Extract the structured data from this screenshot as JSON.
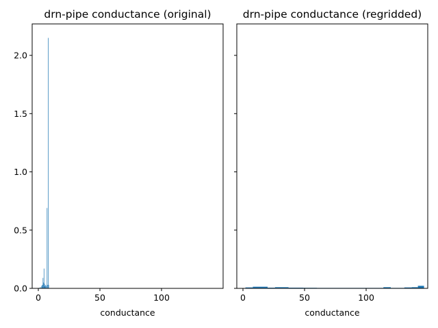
{
  "chart_data": [
    {
      "type": "bar",
      "title": "drn-pipe conductance (original)",
      "xlabel": "conductance",
      "ylabel": "",
      "xlim": [
        -5,
        150
      ],
      "ylim": [
        0,
        2.27
      ],
      "xticks": [
        0,
        50,
        100
      ],
      "xtick_labels": [
        "0",
        "50",
        "100"
      ],
      "yticks": [
        0.0,
        0.5,
        1.0,
        1.5,
        2.0
      ],
      "ytick_labels": [
        "0.0",
        "0.5",
        "1.0",
        "1.5",
        "2.0"
      ],
      "show_ytick_labels": true,
      "color": "#1f77b4",
      "bars": [
        {
          "x0": 0.5,
          "x1": 1.0,
          "value": 0.005
        },
        {
          "x0": 1.5,
          "x1": 2.0,
          "value": 0.01
        },
        {
          "x0": 2.5,
          "x1": 3.0,
          "value": 0.02
        },
        {
          "x0": 3.0,
          "x1": 3.5,
          "value": 0.03
        },
        {
          "x0": 3.6,
          "x1": 4.0,
          "value": 0.09
        },
        {
          "x0": 4.0,
          "x1": 4.4,
          "value": 0.05
        },
        {
          "x0": 4.4,
          "x1": 4.8,
          "value": 0.17
        },
        {
          "x0": 4.8,
          "x1": 5.2,
          "value": 0.04
        },
        {
          "x0": 5.2,
          "x1": 5.7,
          "value": 0.02
        },
        {
          "x0": 5.8,
          "x1": 6.2,
          "value": 0.03
        },
        {
          "x0": 6.3,
          "x1": 6.7,
          "value": 0.02
        },
        {
          "x0": 6.9,
          "x1": 7.3,
          "value": 0.69
        },
        {
          "x0": 7.3,
          "x1": 7.7,
          "value": 0.03
        },
        {
          "x0": 7.8,
          "x1": 8.2,
          "value": 2.15
        },
        {
          "x0": 8.2,
          "x1": 8.6,
          "value": 0.03
        }
      ]
    },
    {
      "type": "bar",
      "title": "drn-pipe conductance (regridded)",
      "xlabel": "conductance",
      "ylabel": "",
      "xlim": [
        -5,
        150
      ],
      "ylim": [
        0,
        2.27
      ],
      "xticks": [
        0,
        50,
        100
      ],
      "xtick_labels": [
        "0",
        "50",
        "100"
      ],
      "yticks": [
        0.0,
        0.5,
        1.0,
        1.5,
        2.0
      ],
      "ytick_labels": [
        "0.0",
        "0.5",
        "1.0",
        "1.5",
        "2.0"
      ],
      "show_ytick_labels": false,
      "color": "#1f77b4",
      "bars": [
        {
          "x0": 2,
          "x1": 8,
          "value": 0.008
        },
        {
          "x0": 8,
          "x1": 20,
          "value": 0.014
        },
        {
          "x0": 20,
          "x1": 26,
          "value": 0.006
        },
        {
          "x0": 26,
          "x1": 37,
          "value": 0.01
        },
        {
          "x0": 37,
          "x1": 49,
          "value": 0.006
        },
        {
          "x0": 49,
          "x1": 60,
          "value": 0.005
        },
        {
          "x0": 60,
          "x1": 72,
          "value": 0.004
        },
        {
          "x0": 72,
          "x1": 83,
          "value": 0.004
        },
        {
          "x0": 83,
          "x1": 95,
          "value": 0.004
        },
        {
          "x0": 95,
          "x1": 106,
          "value": 0.004
        },
        {
          "x0": 106,
          "x1": 114,
          "value": 0.004
        },
        {
          "x0": 114,
          "x1": 120,
          "value": 0.01
        },
        {
          "x0": 120,
          "x1": 131,
          "value": 0.004
        },
        {
          "x0": 131,
          "x1": 137,
          "value": 0.008
        },
        {
          "x0": 137,
          "x1": 142,
          "value": 0.01
        },
        {
          "x0": 142,
          "x1": 147,
          "value": 0.022
        }
      ]
    }
  ]
}
